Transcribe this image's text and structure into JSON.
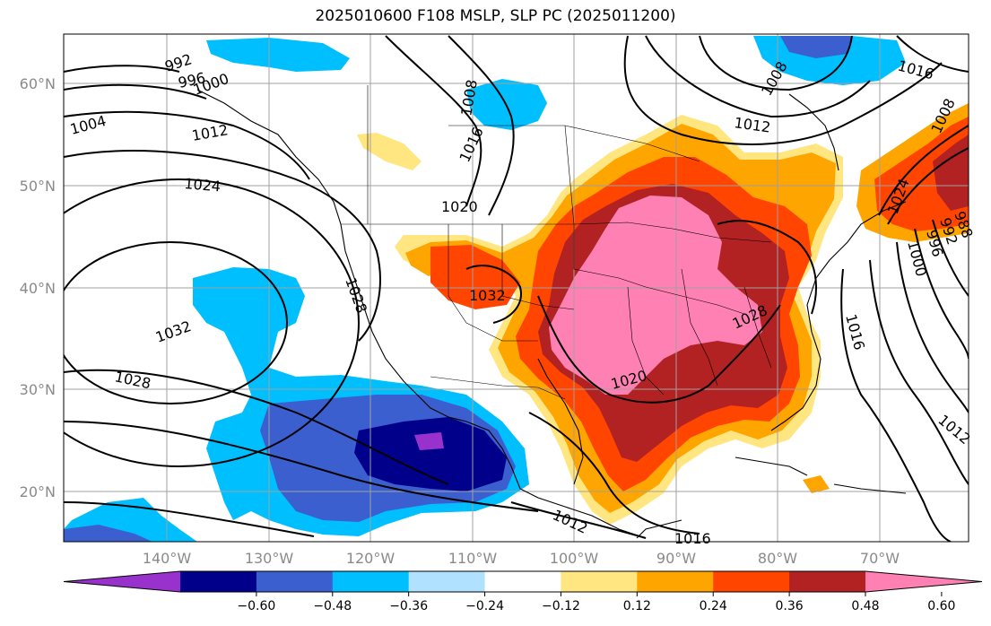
{
  "title": "2025010600 F108 MSLP, SLP PC (2025011200)",
  "map": {
    "lat_labels": [
      "60°N",
      "50°N",
      "40°N",
      "30°N",
      "20°N"
    ],
    "lon_labels": [
      "140°W",
      "130°W",
      "120°W",
      "110°W",
      "100°W",
      "90°W",
      "80°W",
      "70°W"
    ],
    "isobar_labels": [
      "992",
      "996",
      "1000",
      "1004",
      "1012",
      "1024",
      "1032",
      "1028",
      "1008",
      "1016",
      "1020",
      "1032",
      "1028",
      "1020",
      "1012",
      "1016",
      "1008",
      "1012",
      "1016",
      "1016",
      "1012",
      "1016",
      "1024",
      "1000",
      "996",
      "992",
      "988",
      "1008",
      "1028"
    ]
  },
  "colorbar": {
    "colors": [
      "#9932cc",
      "#00008b",
      "#3b5fcf",
      "#00bfff",
      "#b0e2ff",
      "#ffffff",
      "#ffe680",
      "#ffa500",
      "#ff4500",
      "#b22222",
      "#ff80b3"
    ],
    "tick_labels": [
      "−0.60",
      "−0.48",
      "−0.36",
      "−0.24",
      "−0.12",
      "0.12",
      "0.24",
      "0.36",
      "0.48",
      "0.60"
    ]
  }
}
